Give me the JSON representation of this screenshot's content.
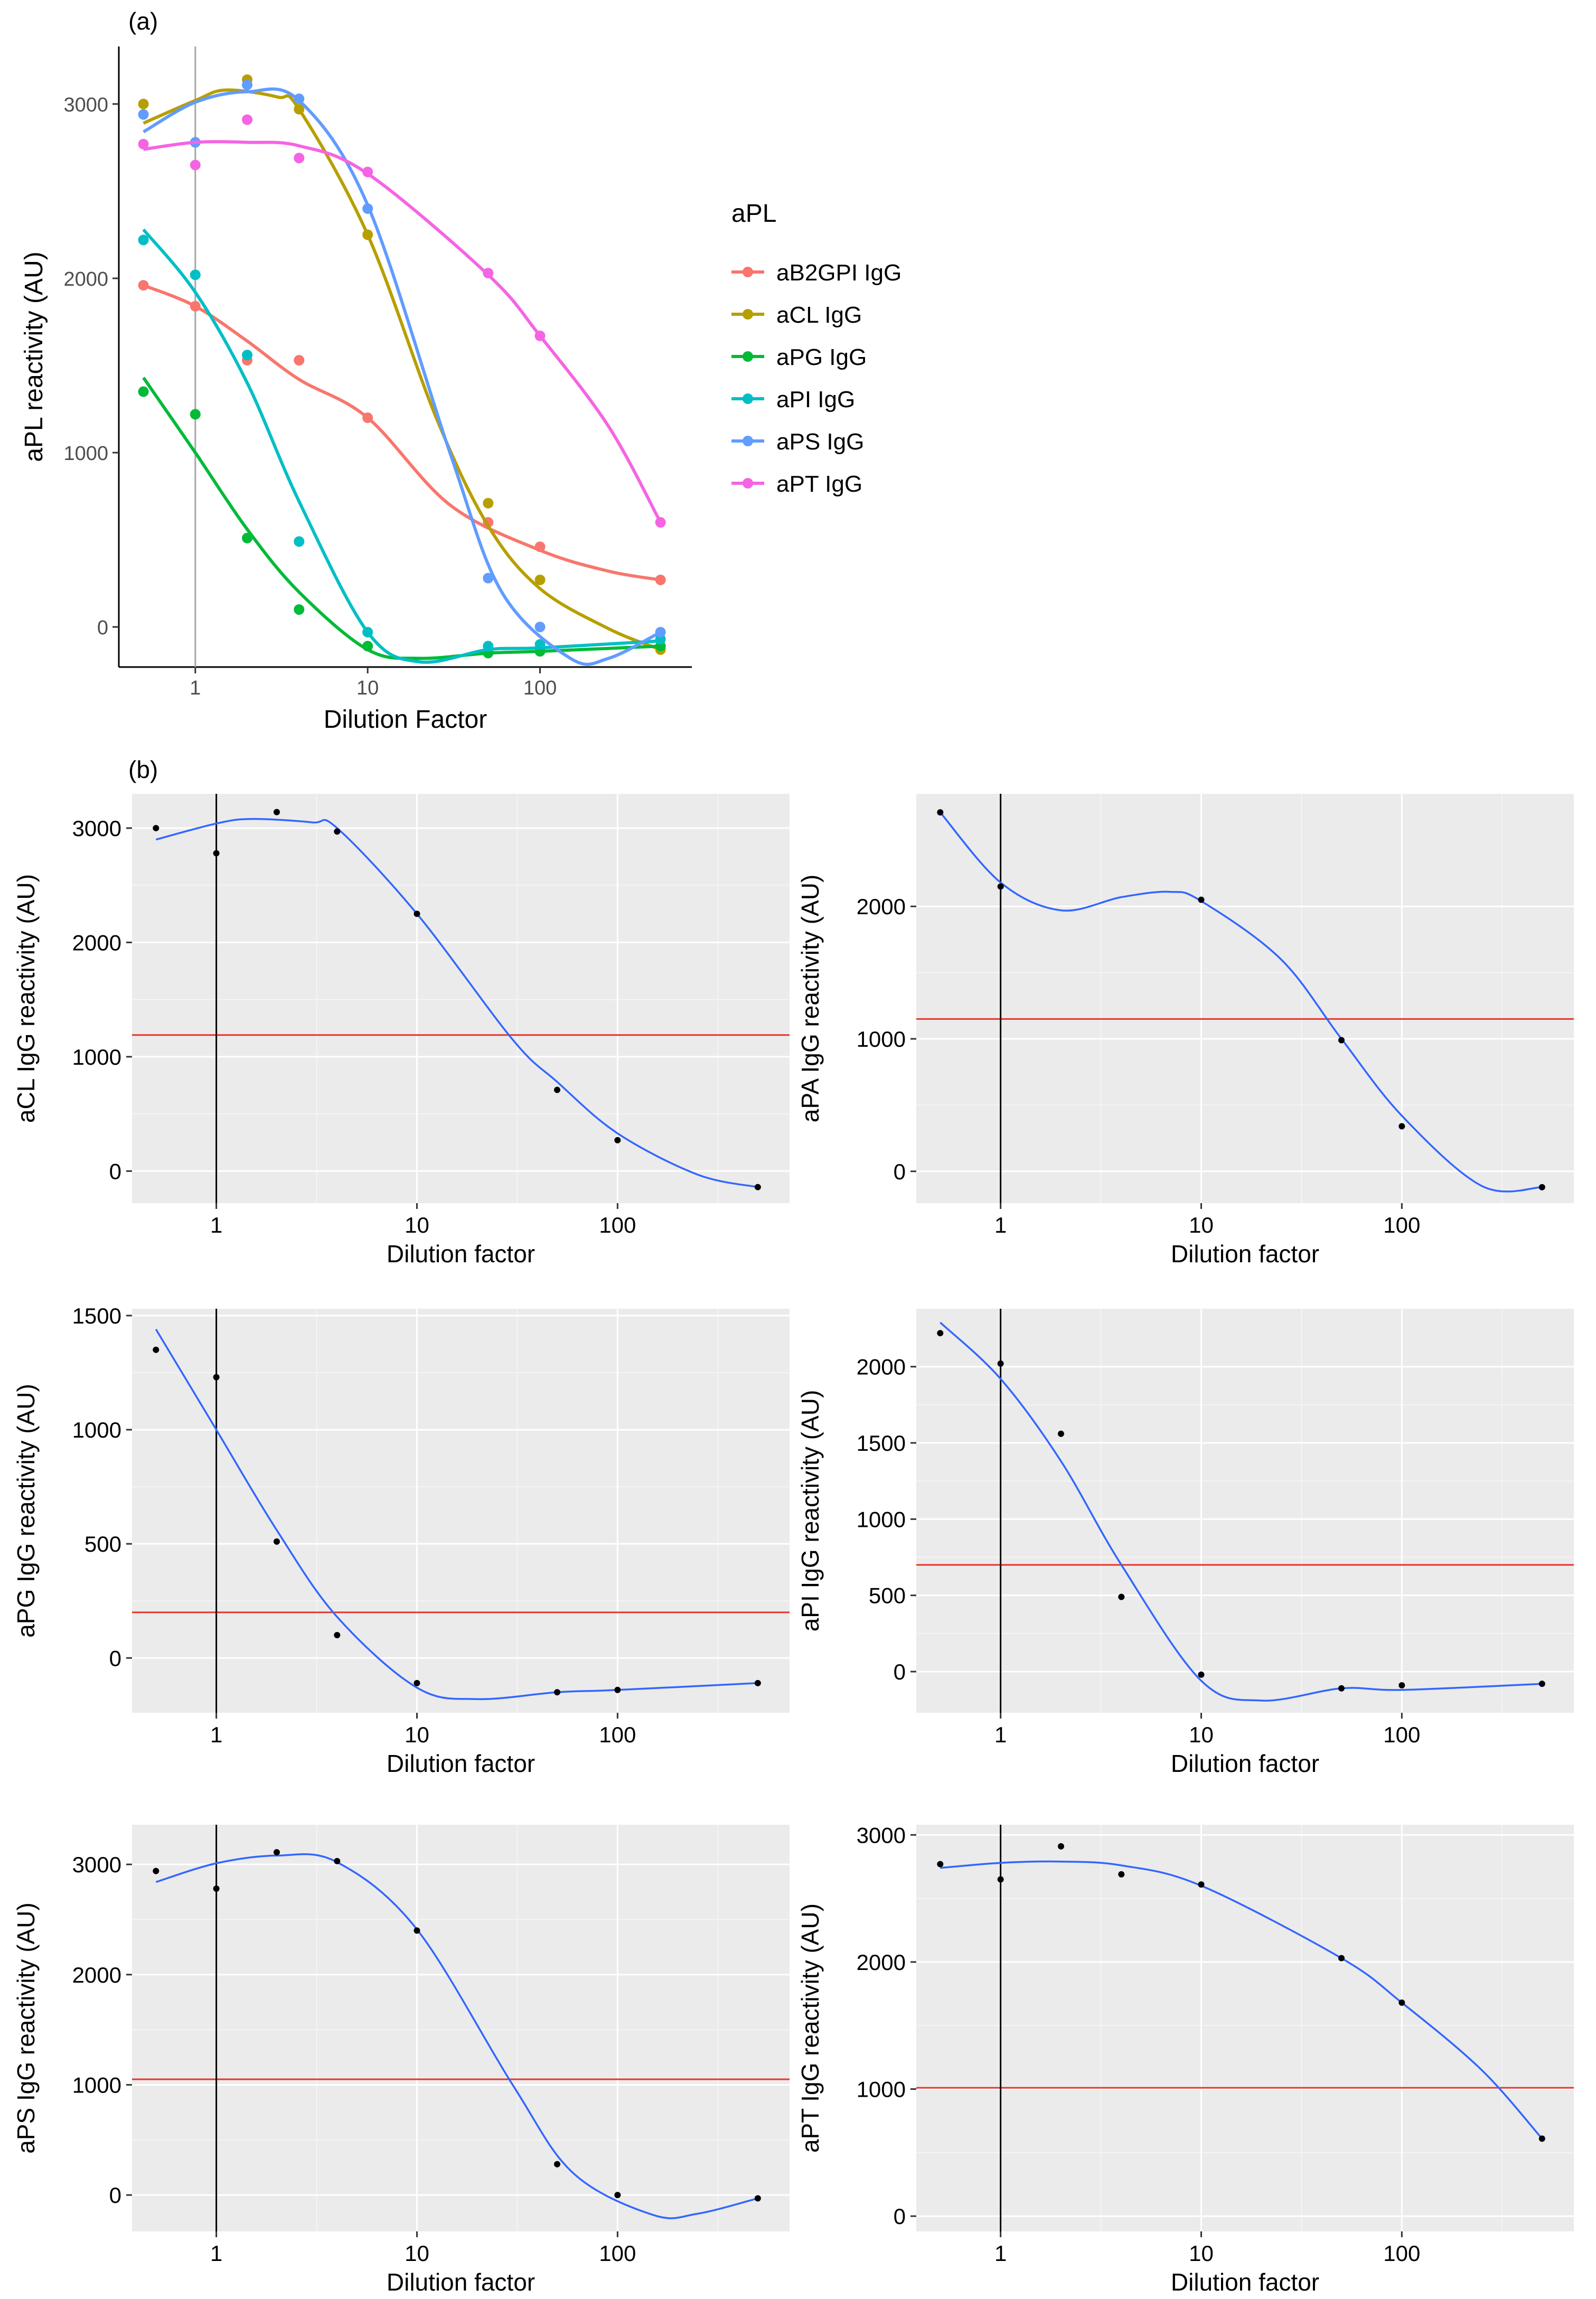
{
  "panel_labels": {
    "a": "(a)",
    "b": "(b)"
  },
  "x_ticks": [
    {
      "value": 1,
      "label": "1"
    },
    {
      "value": 10,
      "label": "10"
    },
    {
      "value": 100,
      "label": "100"
    }
  ],
  "x_minor_ticks": [
    3.1623,
    31.623,
    316.23
  ],
  "chart_data": [
    {
      "id": "panel-a",
      "type": "scatter",
      "title": "",
      "xlabel": "Dilution Factor",
      "ylabel": "aPL reactivity (AU)",
      "xscale": "log10",
      "xlim": [
        0.36,
        760
      ],
      "ylim": [
        -230,
        3330
      ],
      "y_ticks": [
        0,
        1000,
        2000,
        3000
      ],
      "x_values": [
        0.5,
        1,
        2,
        4,
        10,
        50,
        100,
        500
      ],
      "legend": {
        "title": "aPL",
        "placement": "right"
      },
      "vline": 1,
      "series": [
        {
          "name": "aB2GPI IgG",
          "color": "#F8766D",
          "values": [
            1960,
            1840,
            1530,
            1530,
            1200,
            600,
            460,
            270
          ],
          "fit": [
            [
              0.5,
              1960
            ],
            [
              1,
              1840
            ],
            [
              2,
              1640
            ],
            [
              4,
              1420
            ],
            [
              10,
              1200
            ],
            [
              30,
              700
            ],
            [
              100,
              440
            ],
            [
              250,
              320
            ],
            [
              500,
              270
            ]
          ]
        },
        {
          "name": "aCL IgG",
          "color": "#B79F00",
          "values": [
            3000,
            2780,
            3140,
            2970,
            2250,
            710,
            270,
            -130
          ],
          "fit": [
            [
              0.5,
              2890
            ],
            [
              1,
              3020
            ],
            [
              1.5,
              3080
            ],
            [
              3,
              3040
            ],
            [
              4,
              2970
            ],
            [
              10,
              2250
            ],
            [
              25,
              1200
            ],
            [
              50,
              580
            ],
            [
              100,
              220
            ],
            [
              250,
              -10
            ],
            [
              500,
              -130
            ]
          ]
        },
        {
          "name": "aPG IgG",
          "color": "#00BA38",
          "values": [
            1350,
            1220,
            510,
            100,
            -110,
            -150,
            -140,
            -110
          ],
          "fit": [
            [
              0.5,
              1430
            ],
            [
              1,
              1000
            ],
            [
              2,
              560
            ],
            [
              4,
              200
            ],
            [
              10,
              -130
            ],
            [
              20,
              -180
            ],
            [
              50,
              -150
            ],
            [
              100,
              -140
            ],
            [
              500,
              -110
            ]
          ]
        },
        {
          "name": "aPI IgG",
          "color": "#00BFC4",
          "values": [
            2220,
            2020,
            1560,
            490,
            -30,
            -110,
            -100,
            -70
          ],
          "fit": [
            [
              0.5,
              2280
            ],
            [
              1,
              1920
            ],
            [
              2,
              1400
            ],
            [
              4,
              720
            ],
            [
              10,
              -30
            ],
            [
              20,
              -200
            ],
            [
              50,
              -130
            ],
            [
              100,
              -120
            ],
            [
              500,
              -80
            ]
          ]
        },
        {
          "name": "aPS IgG",
          "color": "#619CFF",
          "values": [
            2940,
            2780,
            3110,
            3030,
            2400,
            280,
            0,
            -30
          ],
          "fit": [
            [
              0.5,
              2840
            ],
            [
              1,
              3010
            ],
            [
              2,
              3070
            ],
            [
              4,
              3020
            ],
            [
              10,
              2420
            ],
            [
              30,
              1000
            ],
            [
              60,
              200
            ],
            [
              150,
              -180
            ],
            [
              250,
              -180
            ],
            [
              500,
              -30
            ]
          ]
        },
        {
          "name": "aPT IgG",
          "color": "#F564E3",
          "values": [
            2770,
            2650,
            2910,
            2690,
            2610,
            2030,
            1670,
            600
          ],
          "fit": [
            [
              0.5,
              2740
            ],
            [
              1,
              2780
            ],
            [
              2,
              2780
            ],
            [
              4,
              2760
            ],
            [
              10,
              2600
            ],
            [
              50,
              2020
            ],
            [
              100,
              1670
            ],
            [
              250,
              1150
            ],
            [
              500,
              600
            ]
          ]
        }
      ]
    },
    {
      "id": "panel-aCL",
      "type": "scatter",
      "xlabel": "Dilution factor",
      "ylabel": "aCL IgG reactivity (AU)",
      "xscale": "log10",
      "xlim": [
        0.38,
        720
      ],
      "ylim": [
        -280,
        3300
      ],
      "y_ticks": [
        0,
        1000,
        2000,
        3000
      ],
      "cutoff": 1190,
      "vline": 1,
      "x": [
        0.5,
        1,
        2,
        4,
        10,
        50,
        100,
        500
      ],
      "y": [
        3000,
        2780,
        3140,
        2970,
        2250,
        710,
        270,
        -140
      ],
      "fit": [
        [
          0.5,
          2900
        ],
        [
          1,
          3040
        ],
        [
          1.5,
          3080
        ],
        [
          3,
          3050
        ],
        [
          4,
          3000
        ],
        [
          10,
          2250
        ],
        [
          30,
          1150
        ],
        [
          50,
          780
        ],
        [
          100,
          330
        ],
        [
          250,
          -30
        ],
        [
          500,
          -140
        ]
      ]
    },
    {
      "id": "panel-aPA",
      "type": "scatter",
      "xlabel": "Dilution factor",
      "ylabel": "aPA IgG reactivity (AU)",
      "xscale": "log10",
      "xlim": [
        0.38,
        720
      ],
      "ylim": [
        -240,
        2850
      ],
      "y_ticks": [
        0,
        1000,
        2000
      ],
      "cutoff": 1150,
      "vline": 1,
      "x": [
        0.5,
        1,
        10,
        50,
        100,
        500
      ],
      "y": [
        2710,
        2150,
        2050,
        990,
        340,
        -120
      ],
      "fit": [
        [
          0.5,
          2710
        ],
        [
          1,
          2180
        ],
        [
          2,
          1970
        ],
        [
          4,
          2070
        ],
        [
          7,
          2110
        ],
        [
          10,
          2040
        ],
        [
          25,
          1600
        ],
        [
          50,
          1000
        ],
        [
          100,
          420
        ],
        [
          250,
          -110
        ],
        [
          500,
          -120
        ]
      ]
    },
    {
      "id": "panel-aPG",
      "type": "scatter",
      "xlabel": "Dilution factor",
      "ylabel": "aPG IgG reactivity (AU)",
      "xscale": "log10",
      "xlim": [
        0.38,
        720
      ],
      "ylim": [
        -240,
        1530
      ],
      "y_ticks": [
        0,
        500,
        1000,
        1500
      ],
      "cutoff": 200,
      "vline": 1,
      "x": [
        0.5,
        1,
        2,
        4,
        10,
        50,
        100,
        500
      ],
      "y": [
        1350,
        1230,
        510,
        100,
        -110,
        -150,
        -140,
        -110
      ],
      "fit": [
        [
          0.5,
          1440
        ],
        [
          1,
          1000
        ],
        [
          2,
          560
        ],
        [
          4,
          180
        ],
        [
          10,
          -130
        ],
        [
          20,
          -180
        ],
        [
          50,
          -150
        ],
        [
          100,
          -140
        ],
        [
          500,
          -110
        ]
      ]
    },
    {
      "id": "panel-aPI",
      "type": "scatter",
      "xlabel": "Dilution factor",
      "ylabel": "aPI IgG reactivity (AU)",
      "xscale": "log10",
      "xlim": [
        0.38,
        720
      ],
      "ylim": [
        -270,
        2380
      ],
      "y_ticks": [
        0,
        500,
        1000,
        1500,
        2000
      ],
      "cutoff": 700,
      "vline": 1,
      "x": [
        0.5,
        1,
        2,
        4,
        10,
        50,
        100,
        500
      ],
      "y": [
        2220,
        2020,
        1560,
        490,
        -20,
        -110,
        -90,
        -80
      ],
      "fit": [
        [
          0.5,
          2290
        ],
        [
          1,
          1920
        ],
        [
          2,
          1380
        ],
        [
          4,
          700
        ],
        [
          10,
          -60
        ],
        [
          20,
          -190
        ],
        [
          50,
          -110
        ],
        [
          100,
          -120
        ],
        [
          500,
          -80
        ]
      ]
    },
    {
      "id": "panel-aPS",
      "type": "scatter",
      "xlabel": "Dilution factor",
      "ylabel": "aPS IgG reactivity (AU)",
      "xscale": "log10",
      "xlim": [
        0.38,
        720
      ],
      "ylim": [
        -330,
        3360
      ],
      "y_ticks": [
        0,
        1000,
        2000,
        3000
      ],
      "cutoff": 1050,
      "vline": 1,
      "x": [
        0.5,
        1,
        2,
        4,
        10,
        50,
        100,
        500
      ],
      "y": [
        2940,
        2780,
        3110,
        3030,
        2400,
        280,
        0,
        -30
      ],
      "fit": [
        [
          0.5,
          2840
        ],
        [
          1,
          3010
        ],
        [
          2,
          3080
        ],
        [
          4,
          3020
        ],
        [
          10,
          2410
        ],
        [
          30,
          1000
        ],
        [
          60,
          200
        ],
        [
          150,
          -180
        ],
        [
          250,
          -170
        ],
        [
          500,
          -30
        ]
      ]
    },
    {
      "id": "panel-aPT",
      "type": "scatter",
      "xlabel": "Dilution factor",
      "ylabel": "aPT IgG reactivity (AU)",
      "xscale": "log10",
      "xlim": [
        0.38,
        720
      ],
      "ylim": [
        -120,
        3080
      ],
      "y_ticks": [
        0,
        1000,
        2000,
        3000
      ],
      "cutoff": 1010,
      "vline": 1,
      "x": [
        0.5,
        1,
        2,
        4,
        10,
        50,
        100,
        500
      ],
      "y": [
        2770,
        2650,
        2910,
        2690,
        2610,
        2030,
        1680,
        610
      ],
      "fit": [
        [
          0.5,
          2740
        ],
        [
          1,
          2780
        ],
        [
          2,
          2790
        ],
        [
          4,
          2760
        ],
        [
          10,
          2600
        ],
        [
          50,
          2030
        ],
        [
          100,
          1680
        ],
        [
          250,
          1150
        ],
        [
          500,
          610
        ]
      ]
    }
  ]
}
